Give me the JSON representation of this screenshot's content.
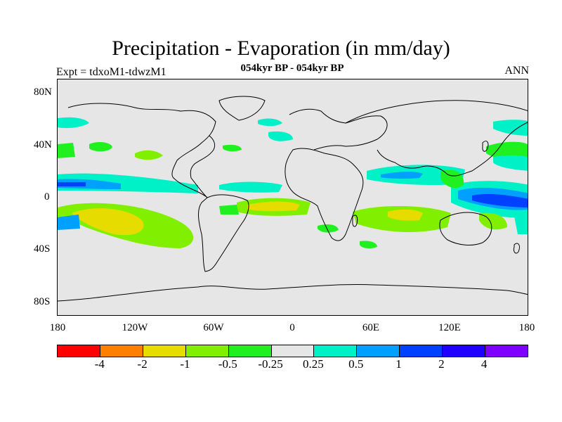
{
  "title": "Precipitation - Evaporation (in mm/day)",
  "subtitle": "054kyr BP - 054kyr BP",
  "experiment": "Expt = tdxoM1-tdwzM1",
  "season": "ANN",
  "lat_labels": [
    "80N",
    "40N",
    "0",
    "40S",
    "80S"
  ],
  "lon_labels": [
    "180",
    "120W",
    "60W",
    "0",
    "60E",
    "120E",
    "180"
  ],
  "colorbar": {
    "colors": [
      "#ff0000",
      "#ff8000",
      "#e6dc00",
      "#80f000",
      "#20f020",
      "#e6e6e6",
      "#00f0c8",
      "#00a0ff",
      "#0040ff",
      "#2000ff",
      "#8000ff"
    ],
    "labels": [
      "-4",
      "-2",
      "-1",
      "-0.5",
      "-0.25",
      "0.25",
      "0.5",
      "1",
      "2",
      "4"
    ]
  }
}
